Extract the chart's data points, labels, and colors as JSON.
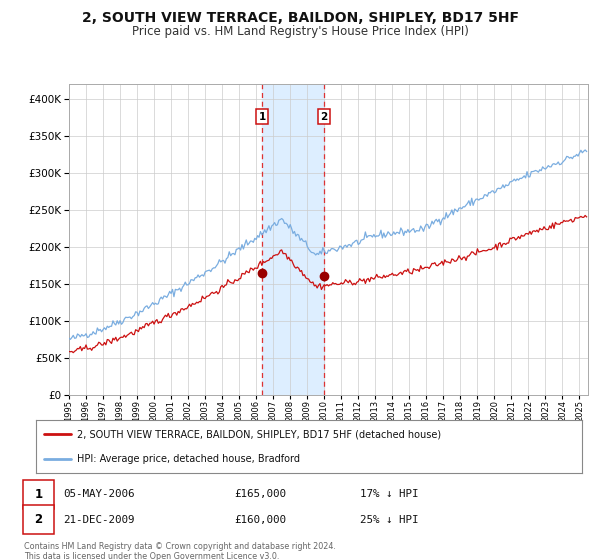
{
  "title": "2, SOUTH VIEW TERRACE, BAILDON, SHIPLEY, BD17 5HF",
  "subtitle": "Price paid vs. HM Land Registry's House Price Index (HPI)",
  "title_fontsize": 10,
  "subtitle_fontsize": 8.5,
  "hpi_color": "#7aade0",
  "price_color": "#cc1111",
  "marker_color": "#990000",
  "background_color": "#ffffff",
  "grid_color": "#cccccc",
  "shade_color": "#ddeeff",
  "sale1_date_num": 2006.34,
  "sale2_date_num": 2009.97,
  "sale1_price": 165000,
  "sale2_price": 160000,
  "sale1_label": "1",
  "sale2_label": "2",
  "sale1_info": "05-MAY-2006",
  "sale1_amount": "£165,000",
  "sale1_hpi": "17% ↓ HPI",
  "sale2_info": "21-DEC-2009",
  "sale2_amount": "£160,000",
  "sale2_hpi": "25% ↓ HPI",
  "legend_label_price": "2, SOUTH VIEW TERRACE, BAILDON, SHIPLEY, BD17 5HF (detached house)",
  "legend_label_hpi": "HPI: Average price, detached house, Bradford",
  "footnote": "Contains HM Land Registry data © Crown copyright and database right 2024.\nThis data is licensed under the Open Government Licence v3.0.",
  "ylim": [
    0,
    420000
  ],
  "yticks": [
    0,
    50000,
    100000,
    150000,
    200000,
    250000,
    300000,
    350000,
    400000
  ],
  "xlim_start": 1995.0,
  "xlim_end": 2025.5
}
